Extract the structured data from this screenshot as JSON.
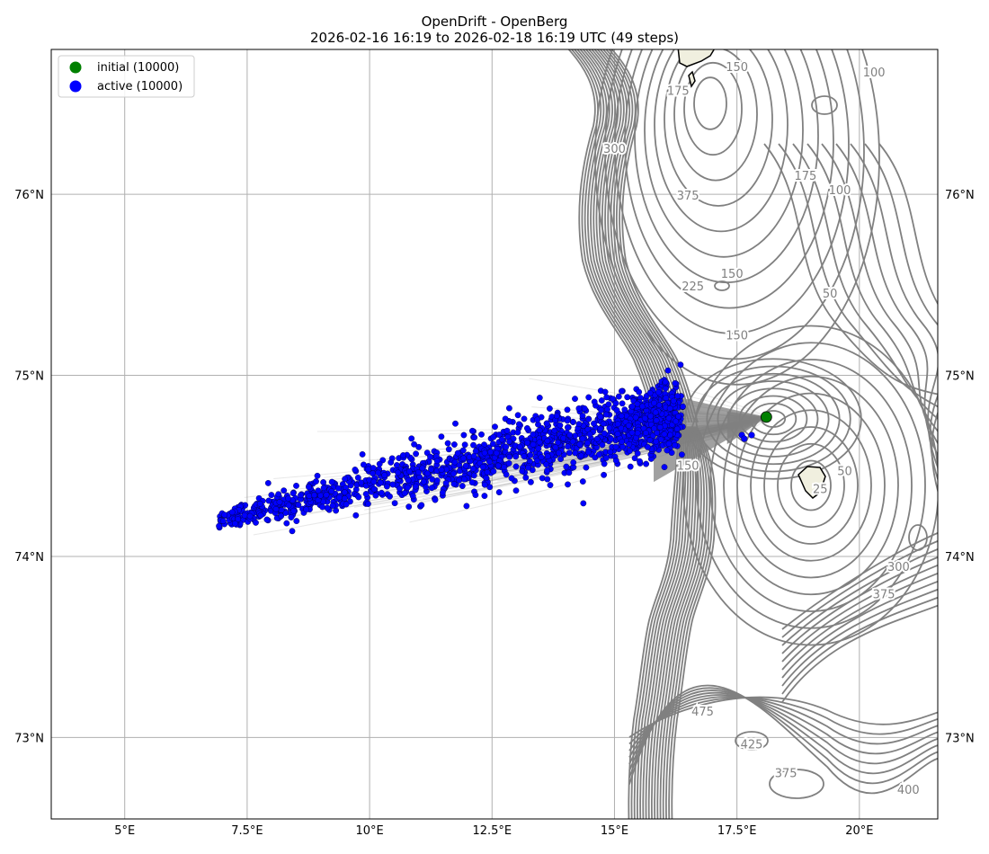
{
  "title": {
    "line1": "OpenDrift - OpenBerg",
    "line2": "2026-02-16 16:19 to 2026-02-18 16:19 UTC (49 steps)"
  },
  "colors": {
    "initial": "#008000",
    "active": "#0000ff",
    "trajectory": "#808080",
    "contour": "#808080",
    "land": "#f0efdf",
    "grid": "#b0b0b0"
  },
  "chart_data": {
    "type": "scatter",
    "map": true,
    "projection": "stereographic",
    "xlim": [
      3.5,
      21.6
    ],
    "ylim": [
      72.55,
      76.8
    ],
    "grid": true,
    "legend_placement": "upper-left",
    "x_ticks": [
      5,
      7.5,
      10,
      12.5,
      15,
      17.5,
      20
    ],
    "x_tick_labels": [
      "5°E",
      "7.5°E",
      "10°E",
      "12.5°E",
      "15°E",
      "17.5°E",
      "20°E"
    ],
    "y_ticks": [
      73,
      74,
      75,
      76
    ],
    "y_tick_labels": [
      "73°N",
      "74°N",
      "75°N",
      "76°N"
    ],
    "series": [
      {
        "name": "initial (10000)",
        "marker": "circle",
        "color": "#008000",
        "points": [
          [
            18.1,
            74.77
          ]
        ]
      },
      {
        "name": "active (10000)",
        "marker": "circle",
        "color": "#0000ff",
        "cloud": {
          "from": [
            6.9,
            74.2
          ],
          "to": [
            16.2,
            74.78
          ],
          "core_from": [
            11.2,
            74.35
          ],
          "core_to": [
            16.0,
            74.72
          ]
        },
        "extra_points": [
          [
            17.6,
            74.67
          ],
          [
            17.8,
            74.67
          ],
          [
            17.65,
            74.65
          ]
        ]
      }
    ],
    "contour_labels": [
      {
        "text": "100",
        "lon": 20.3,
        "lat": 76.65
      },
      {
        "text": "175",
        "lon": 16.3,
        "lat": 76.55
      },
      {
        "text": "150",
        "lon": 17.5,
        "lat": 76.68
      },
      {
        "text": "175",
        "lon": 18.9,
        "lat": 76.08
      },
      {
        "text": "100",
        "lon": 19.6,
        "lat": 76.0
      },
      {
        "text": "375",
        "lon": 16.5,
        "lat": 75.97
      },
      {
        "text": "300",
        "lon": 15.0,
        "lat": 76.23
      },
      {
        "text": "150",
        "lon": 17.4,
        "lat": 75.54
      },
      {
        "text": "225",
        "lon": 16.6,
        "lat": 75.47
      },
      {
        "text": "150",
        "lon": 17.5,
        "lat": 75.2
      },
      {
        "text": "50",
        "lon": 19.4,
        "lat": 75.43
      },
      {
        "text": "50",
        "lon": 19.7,
        "lat": 74.45
      },
      {
        "text": "25",
        "lon": 19.2,
        "lat": 74.35
      },
      {
        "text": "150",
        "lon": 16.5,
        "lat": 74.48
      },
      {
        "text": "300",
        "lon": 20.8,
        "lat": 73.92
      },
      {
        "text": "375",
        "lon": 20.5,
        "lat": 73.77
      },
      {
        "text": "475",
        "lon": 16.8,
        "lat": 73.12
      },
      {
        "text": "425",
        "lon": 17.8,
        "lat": 72.94
      },
      {
        "text": "375",
        "lon": 18.5,
        "lat": 72.78
      },
      {
        "text": "400",
        "lon": 21.0,
        "lat": 72.69
      }
    ]
  }
}
